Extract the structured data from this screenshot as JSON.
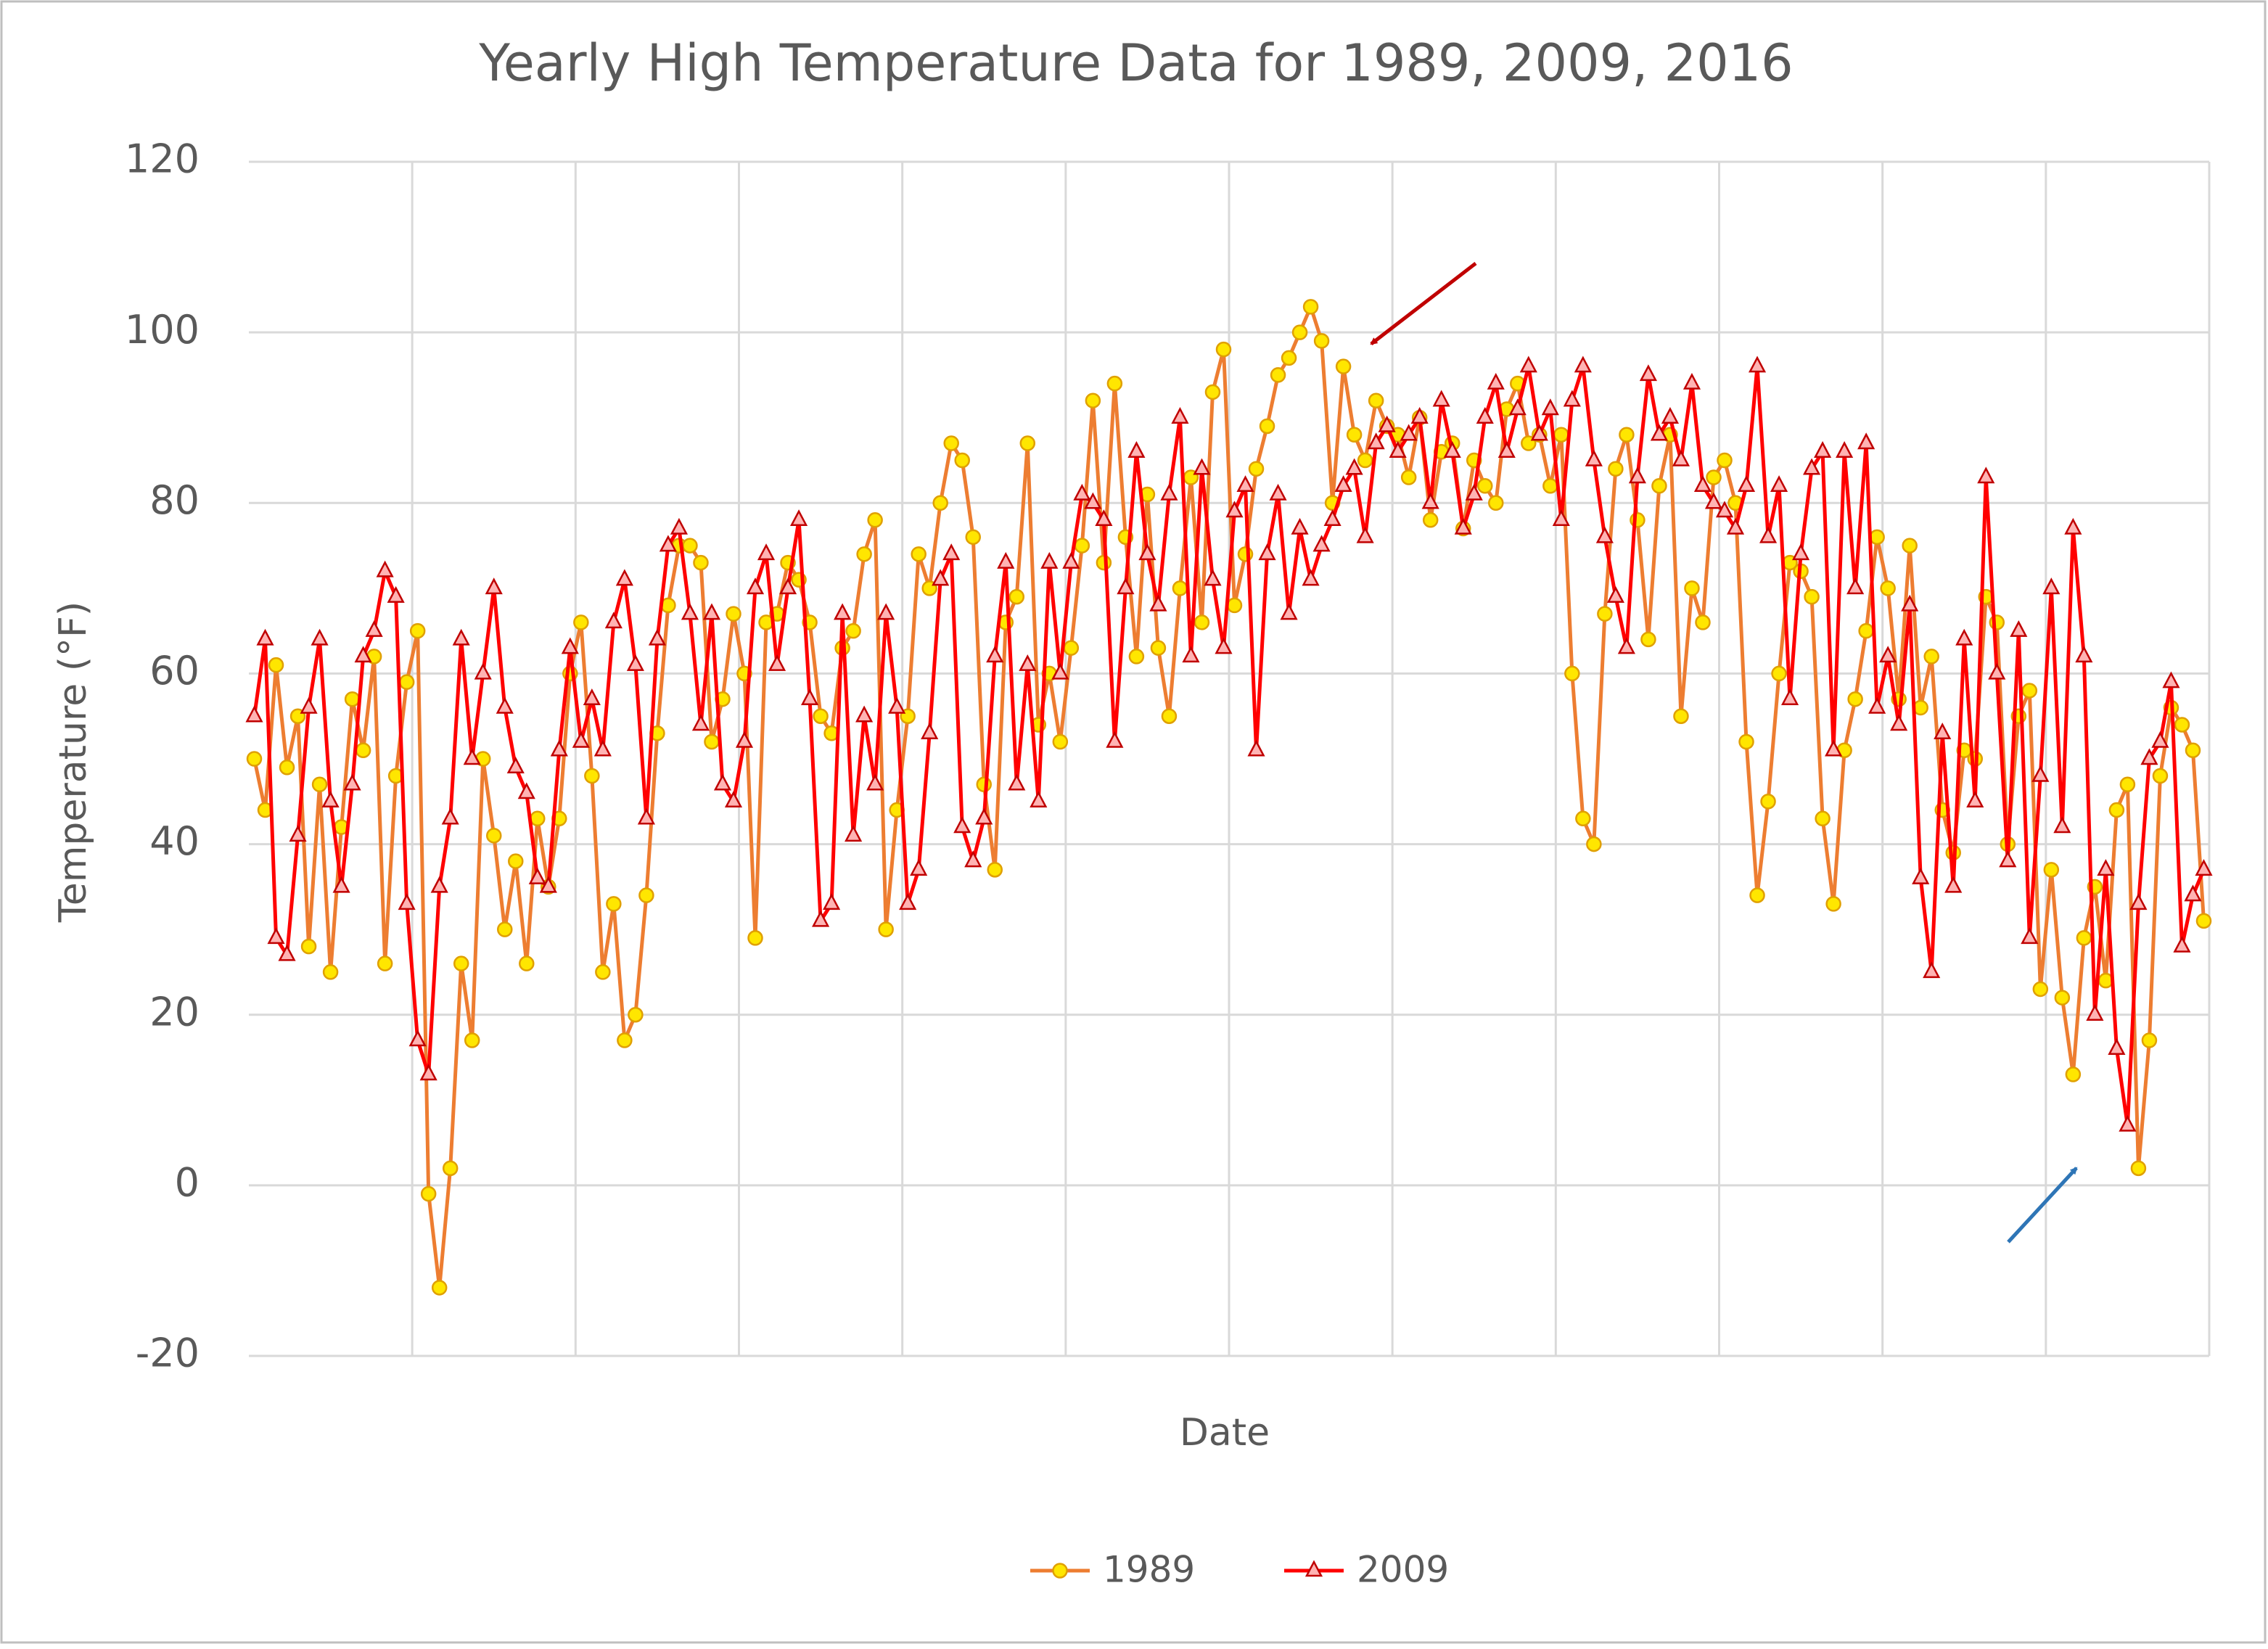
{
  "chart_data": {
    "type": "line",
    "title": "Yearly High Temperature Data for 1989, 2009, 2016",
    "x_label": "Date",
    "y_label": "Temperature (°F)",
    "ylim": [
      -20,
      120
    ],
    "yticks": [
      -20,
      0,
      20,
      40,
      60,
      80,
      100,
      120
    ],
    "grid": true,
    "legend": "bottom",
    "series": [
      {
        "name": "1989",
        "color": "#ed7d31",
        "marker": "circle",
        "marker_fill": "#ffe600",
        "marker_stroke": "#e0a000",
        "values": [
          50,
          44,
          61,
          49,
          55,
          28,
          47,
          25,
          42,
          57,
          51,
          62,
          26,
          48,
          59,
          65,
          -1,
          -12,
          2,
          26,
          17,
          50,
          41,
          30,
          38,
          26,
          43,
          35,
          43,
          60,
          66,
          48,
          25,
          33,
          17,
          20,
          34,
          53,
          68,
          75,
          75,
          73,
          52,
          57,
          67,
          60,
          29,
          66,
          67,
          73,
          71,
          66,
          55,
          53,
          63,
          65,
          74,
          78,
          30,
          44,
          55,
          74,
          70,
          80,
          87,
          85,
          76,
          47,
          37,
          66,
          69,
          87,
          54,
          60,
          52,
          63,
          75,
          92,
          73,
          94,
          76,
          62,
          81,
          63,
          55,
          70,
          83,
          66,
          93,
          98,
          68,
          74,
          84,
          89,
          95,
          97,
          100,
          103,
          99,
          80,
          96,
          88,
          85,
          92,
          89,
          88,
          83,
          90,
          78,
          86,
          87,
          77,
          85,
          82,
          80,
          91,
          94,
          87,
          88,
          82,
          88,
          60,
          43,
          40,
          67,
          84,
          88,
          78,
          64,
          82,
          88,
          55,
          70,
          66,
          83,
          85,
          80,
          52,
          34,
          45,
          60,
          73,
          72,
          69,
          43,
          33,
          51,
          57,
          65,
          76,
          70,
          57,
          75,
          56,
          62,
          44,
          39,
          51,
          50,
          69,
          66,
          40,
          55,
          58,
          23,
          37,
          22,
          13,
          29,
          35,
          24,
          44,
          47,
          2,
          17,
          48,
          56,
          54,
          51,
          31
        ]
      },
      {
        "name": "2009",
        "color": "#ff0000",
        "marker": "triangle",
        "marker_fill": "#ffb3b3",
        "marker_stroke": "#c00000",
        "values": [
          55,
          64,
          29,
          27,
          41,
          56,
          64,
          45,
          35,
          47,
          62,
          65,
          72,
          69,
          33,
          17,
          13,
          35,
          43,
          64,
          50,
          60,
          70,
          56,
          49,
          46,
          36,
          35,
          51,
          63,
          52,
          57,
          51,
          66,
          71,
          61,
          43,
          64,
          75,
          77,
          67,
          54,
          67,
          47,
          45,
          52,
          70,
          74,
          61,
          70,
          78,
          57,
          31,
          33,
          67,
          41,
          55,
          47,
          67,
          56,
          33,
          37,
          53,
          71,
          74,
          42,
          38,
          43,
          62,
          73,
          47,
          61,
          45,
          73,
          60,
          73,
          81,
          80,
          78,
          52,
          70,
          86,
          74,
          68,
          81,
          90,
          62,
          84,
          71,
          63,
          79,
          82,
          51,
          74,
          81,
          67,
          77,
          71,
          75,
          78,
          82,
          84,
          76,
          87,
          89,
          86,
          88,
          90,
          80,
          92,
          86,
          77,
          81,
          90,
          94,
          86,
          91,
          96,
          88,
          91,
          78,
          92,
          96,
          85,
          76,
          69,
          63,
          83,
          95,
          88,
          90,
          85,
          94,
          82,
          80,
          79,
          77,
          82,
          96,
          76,
          82,
          57,
          74,
          84,
          86,
          51,
          86,
          70,
          87,
          56,
          62,
          54,
          68,
          36,
          25,
          53,
          35,
          64,
          45,
          83,
          60,
          38,
          65,
          29,
          48,
          70,
          42,
          77,
          62,
          20,
          37,
          16,
          7,
          33,
          50,
          52,
          59,
          28,
          34,
          37
        ]
      }
    ]
  }
}
